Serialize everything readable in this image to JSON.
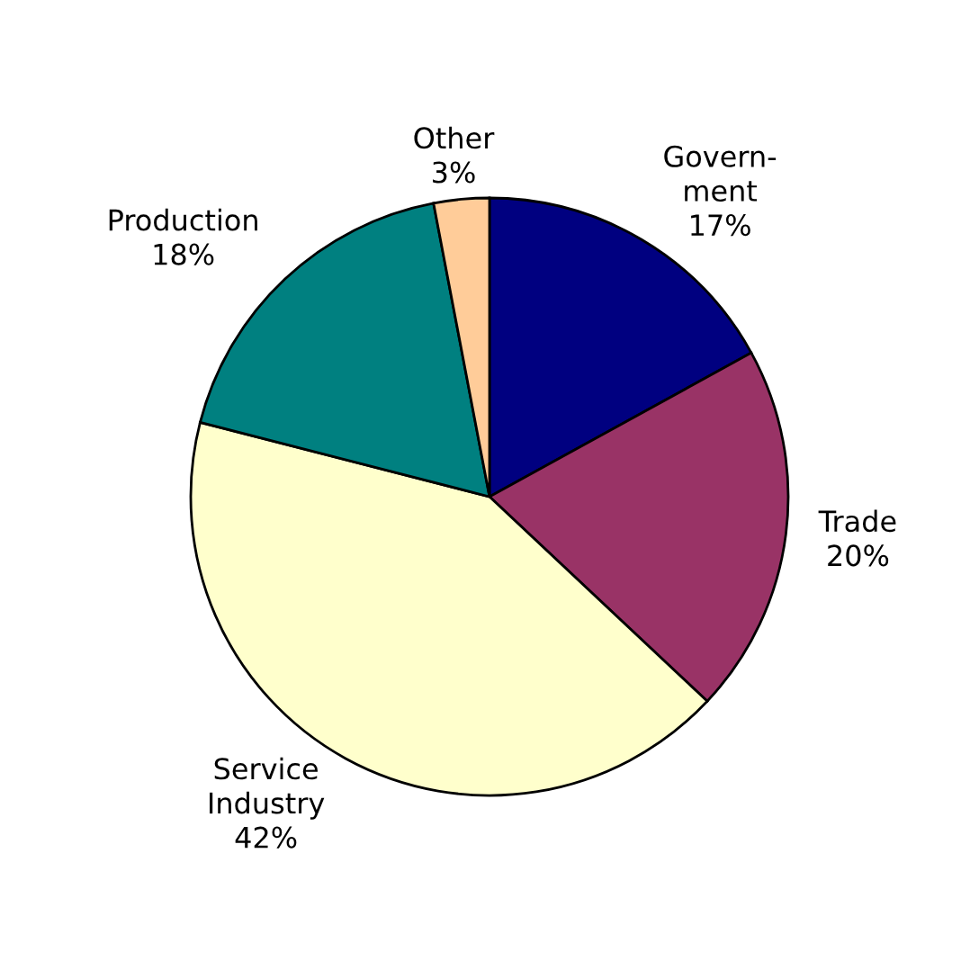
{
  "chart_data": {
    "type": "pie",
    "categories": [
      "Govern-\nment",
      "Trade",
      "Service\nIndustry",
      "Production",
      "Other"
    ],
    "values": [
      17,
      20,
      42,
      18,
      3
    ],
    "value_labels": [
      "17%",
      "20%",
      "42%",
      "18%",
      "3%"
    ],
    "colors": [
      "#000080",
      "#993366",
      "#ffffcc",
      "#008080",
      "#ffcc99"
    ]
  }
}
